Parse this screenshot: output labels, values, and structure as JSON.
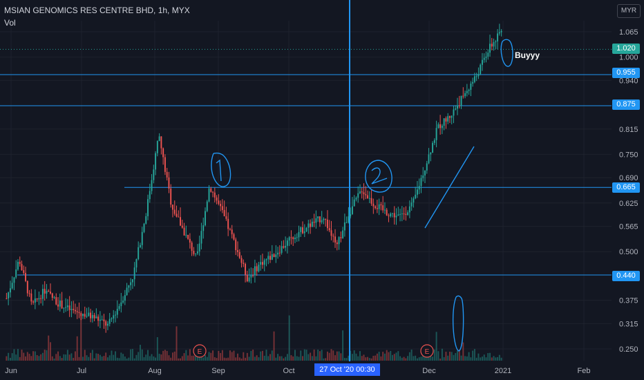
{
  "header": {
    "title": "MSIAN GENOMICS RES CENTRE BHD, 1h, MYX",
    "volume_label": "Vol"
  },
  "currency_button": "MYR",
  "crosshair_label": "27 Oct '20   00:30",
  "annotation_text": "Buyyy",
  "price_tags": [
    {
      "label": "1.020",
      "color": "#26a69a"
    },
    {
      "label": "0.955",
      "color": "#2196f3"
    },
    {
      "label": "0.875",
      "color": "#2196f3"
    },
    {
      "label": "0.665",
      "color": "#2196f3"
    },
    {
      "label": "0.440",
      "color": "#2196f3"
    }
  ],
  "earnings_markers": [
    "E",
    "E"
  ],
  "chart_data": {
    "type": "candlestick",
    "y_axis_ticks": [
      "1.065",
      "1.000",
      "0.940",
      "0.815",
      "0.750",
      "0.690",
      "0.625",
      "0.565",
      "0.500",
      "0.375",
      "0.315",
      "0.250"
    ],
    "x_axis_ticks": [
      "Jun",
      "Jul",
      "Aug",
      "Sep",
      "Oct",
      "Dec",
      "2021",
      "Feb"
    ],
    "price_path": [
      [
        "Jun",
        0.38
      ],
      [
        "Jun",
        0.48
      ],
      [
        "Jun",
        0.36
      ],
      [
        "Jun",
        0.4
      ],
      [
        "Jun",
        0.37
      ],
      [
        "Jul",
        0.35
      ],
      [
        "Jul",
        0.34
      ],
      [
        "Jul",
        0.33
      ],
      [
        "Jul",
        0.31
      ],
      [
        "Aug",
        0.37
      ],
      [
        "Aug",
        0.44
      ],
      [
        "Aug",
        0.6
      ],
      [
        "Aug",
        0.8
      ],
      [
        "Aug",
        0.62
      ],
      [
        "Aug",
        0.55
      ],
      [
        "Aug",
        0.48
      ],
      [
        "Sep",
        0.67
      ],
      [
        "Sep",
        0.6
      ],
      [
        "Sep",
        0.52
      ],
      [
        "Sep",
        0.43
      ],
      [
        "Sep",
        0.47
      ],
      [
        "Oct",
        0.49
      ],
      [
        "Oct",
        0.52
      ],
      [
        "Oct",
        0.55
      ],
      [
        "Oct",
        0.57
      ],
      [
        "Oct",
        0.59
      ],
      [
        "Oct",
        0.51
      ],
      [
        "Oct",
        0.6
      ],
      [
        "Nov",
        0.66
      ],
      [
        "Nov",
        0.62
      ],
      [
        "Nov",
        0.6
      ],
      [
        "Dec",
        0.59
      ],
      [
        "Dec",
        0.62
      ],
      [
        "Dec",
        0.72
      ],
      [
        "Dec",
        0.82
      ],
      [
        "Dec",
        0.85
      ],
      [
        "Dec",
        0.9
      ],
      [
        "Dec",
        0.95
      ],
      [
        "2021",
        1.02
      ],
      [
        "2021",
        1.065
      ]
    ],
    "horizontal_levels": [
      0.955,
      0.875,
      0.665,
      0.44
    ],
    "last_price": 1.02,
    "y_range": [
      0.225,
      1.09
    ],
    "crosshair_x": "27 Oct '20 00:30",
    "grid": true,
    "volume_pane": true
  }
}
